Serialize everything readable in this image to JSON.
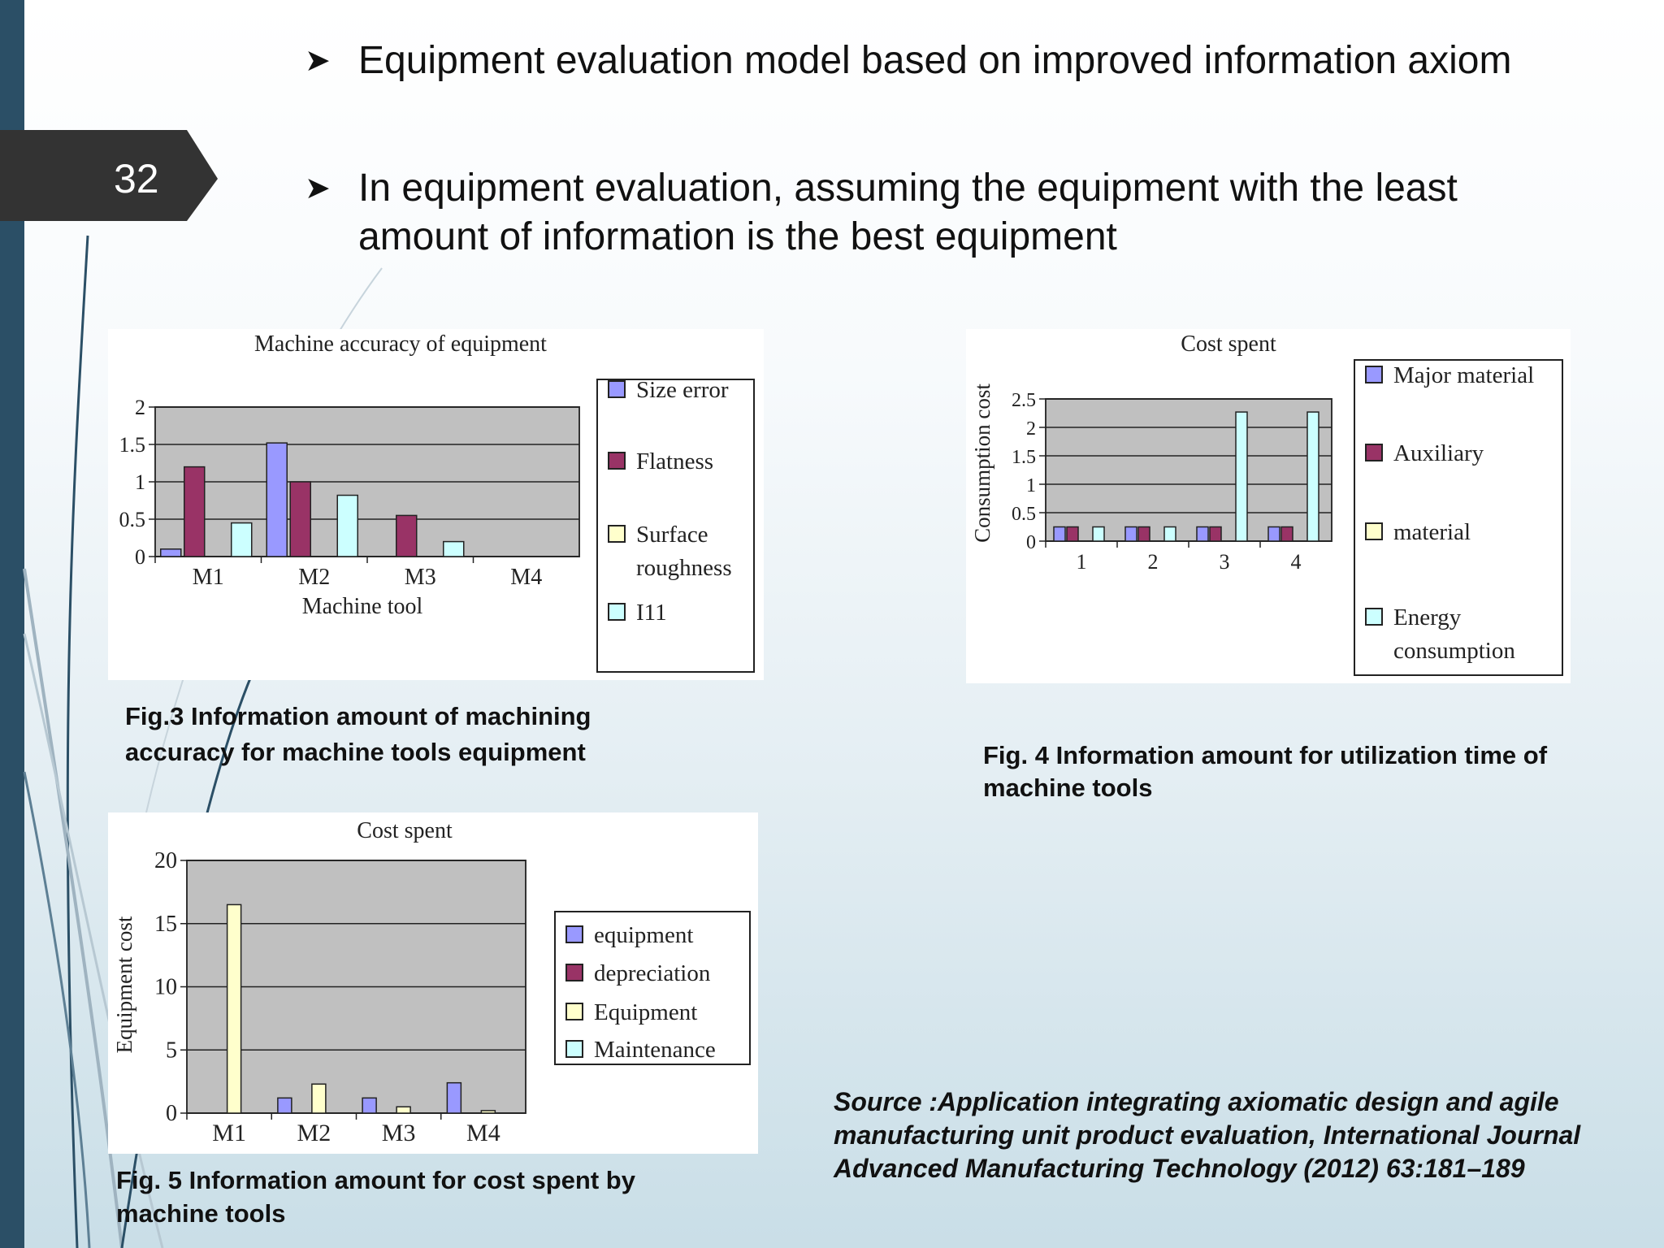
{
  "slide": {
    "number": "32"
  },
  "bullets": [
    {
      "text": "Equipment evaluation model based on improved information axiom"
    },
    {
      "text": "In equipment evaluation, assuming the equipment with the least amount of information is the best equipment"
    }
  ],
  "captions": {
    "fig3": "Fig.3 Information amount of machining accuracy for machine tools equipment",
    "fig4": "Fig. 4 Information amount for utilization time of machine tools",
    "fig5": "Fig. 5 Information amount for cost spent by machine tools"
  },
  "source": "Source :Application integrating axiomatic design and agile manufacturing unit product evaluation, International Journal Advanced Manufacturing Technology (2012) 63:181–189",
  "colors": {
    "plot_bg": "#c0c0c0",
    "blue": "#9999ff",
    "maroon": "#993366",
    "yellow": "#ffffcc",
    "cyan": "#ccffff",
    "slide_band": "#2b4f66",
    "number_tab": "#333333"
  },
  "chart_data": [
    {
      "id": "fig3",
      "type": "bar",
      "title": "Machine accuracy of equipment",
      "xlabel": "Machine tool",
      "ylabel": "",
      "categories": [
        "M1",
        "M2",
        "M3",
        "M4"
      ],
      "ylim": [
        0,
        2
      ],
      "yticks": [
        "0",
        "0.5",
        "1",
        "1.5",
        "2"
      ],
      "grid": true,
      "legend_position": "right",
      "legend": [
        "Size error",
        "Flatness",
        "Surface roughness",
        "I11"
      ],
      "series": [
        {
          "name": "Size error",
          "values": [
            0.1,
            1.52,
            0,
            0
          ]
        },
        {
          "name": "Flatness",
          "values": [
            1.2,
            1.0,
            0.55,
            0
          ]
        },
        {
          "name": "Surface roughness",
          "values": [
            0,
            0,
            0,
            0
          ]
        },
        {
          "name": "I11",
          "values": [
            0.45,
            0.82,
            0.2,
            0
          ]
        }
      ]
    },
    {
      "id": "fig4",
      "type": "bar",
      "title": "Cost spent",
      "xlabel": "",
      "ylabel": "Consumption cost",
      "categories": [
        "1",
        "2",
        "3",
        "4"
      ],
      "ylim": [
        0,
        2.5
      ],
      "yticks": [
        "0",
        "0.5",
        "1",
        "1.5",
        "2",
        "2.5"
      ],
      "grid": true,
      "legend_position": "right",
      "legend": [
        "Major material",
        "Auxiliary",
        "material",
        "Energy consumption"
      ],
      "series": [
        {
          "name": "Major material",
          "values": [
            0.25,
            0.25,
            0.25,
            0.25
          ]
        },
        {
          "name": "Auxiliary",
          "values": [
            0.25,
            0.25,
            0.25,
            0.25
          ]
        },
        {
          "name": "material",
          "values": [
            0,
            0,
            0,
            0
          ]
        },
        {
          "name": "Energy consumption",
          "values": [
            0.25,
            0.25,
            2.27,
            2.27
          ]
        }
      ]
    },
    {
      "id": "fig5",
      "type": "bar",
      "title": "Cost spent",
      "xlabel": "",
      "ylabel": "Equipment cost",
      "categories": [
        "M1",
        "M2",
        "M3",
        "M4"
      ],
      "ylim": [
        0,
        20
      ],
      "yticks": [
        "0",
        "5",
        "10",
        "15",
        "20"
      ],
      "grid": true,
      "legend_position": "right",
      "legend": [
        "equipment",
        "depreciation",
        "Equipment",
        "Maintenance"
      ],
      "series": [
        {
          "name": "equipment",
          "values": [
            0,
            1.2,
            1.2,
            2.4
          ]
        },
        {
          "name": "depreciation",
          "values": [
            0,
            0,
            0,
            0
          ]
        },
        {
          "name": "Equipment",
          "values": [
            16.5,
            2.3,
            0.5,
            0.2
          ]
        },
        {
          "name": "Maintenance",
          "values": [
            0,
            0,
            0,
            0
          ]
        }
      ]
    }
  ]
}
